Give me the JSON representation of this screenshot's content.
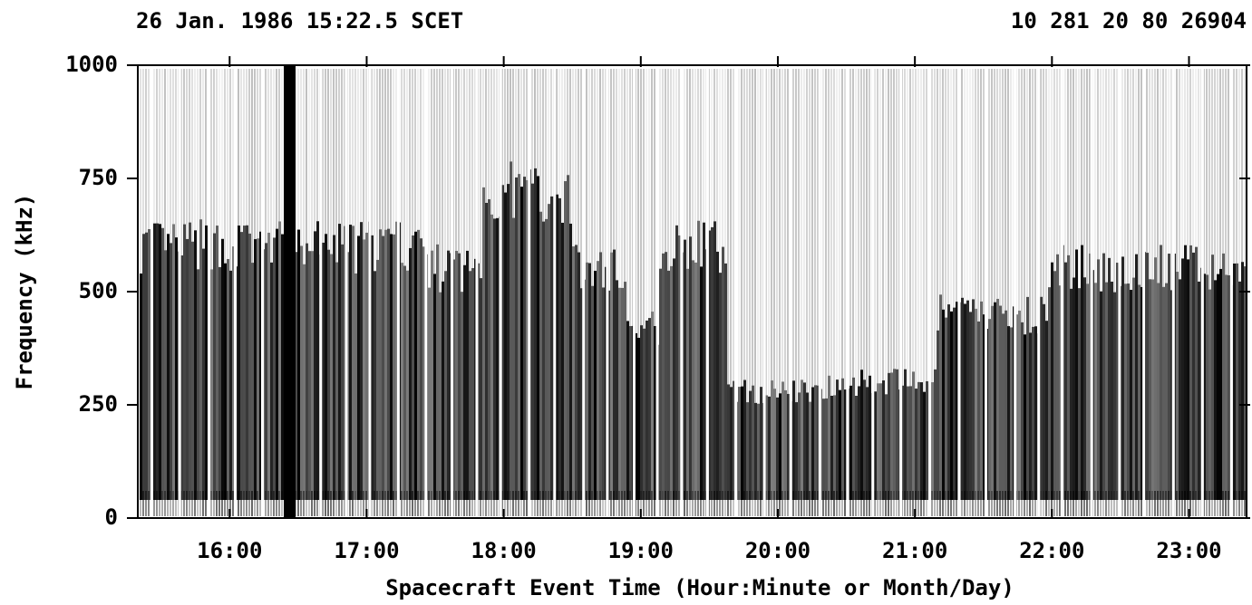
{
  "chart_data": {
    "type": "spectrogram",
    "title": "26 Jan. 1986 15:22.5 SCET",
    "subtitle": "10 281 20 80 26904",
    "x_label": "Spacecraft Event Time (Hour:Minute or Month/Day)",
    "y_label": "Frequency (kHz)",
    "xlim": [
      15.33,
      23.42
    ],
    "xticks": [
      {
        "value": 16,
        "label": "16:00"
      },
      {
        "value": 17,
        "label": "17:00"
      },
      {
        "value": 18,
        "label": "18:00"
      },
      {
        "value": 19,
        "label": "19:00"
      },
      {
        "value": 20,
        "label": "20:00"
      },
      {
        "value": 21,
        "label": "21:00"
      },
      {
        "value": 22,
        "label": "22:00"
      },
      {
        "value": 23,
        "label": "23:00"
      }
    ],
    "ylim": [
      0,
      1000
    ],
    "yticks": [
      0,
      250,
      500,
      750,
      1000
    ]
  }
}
